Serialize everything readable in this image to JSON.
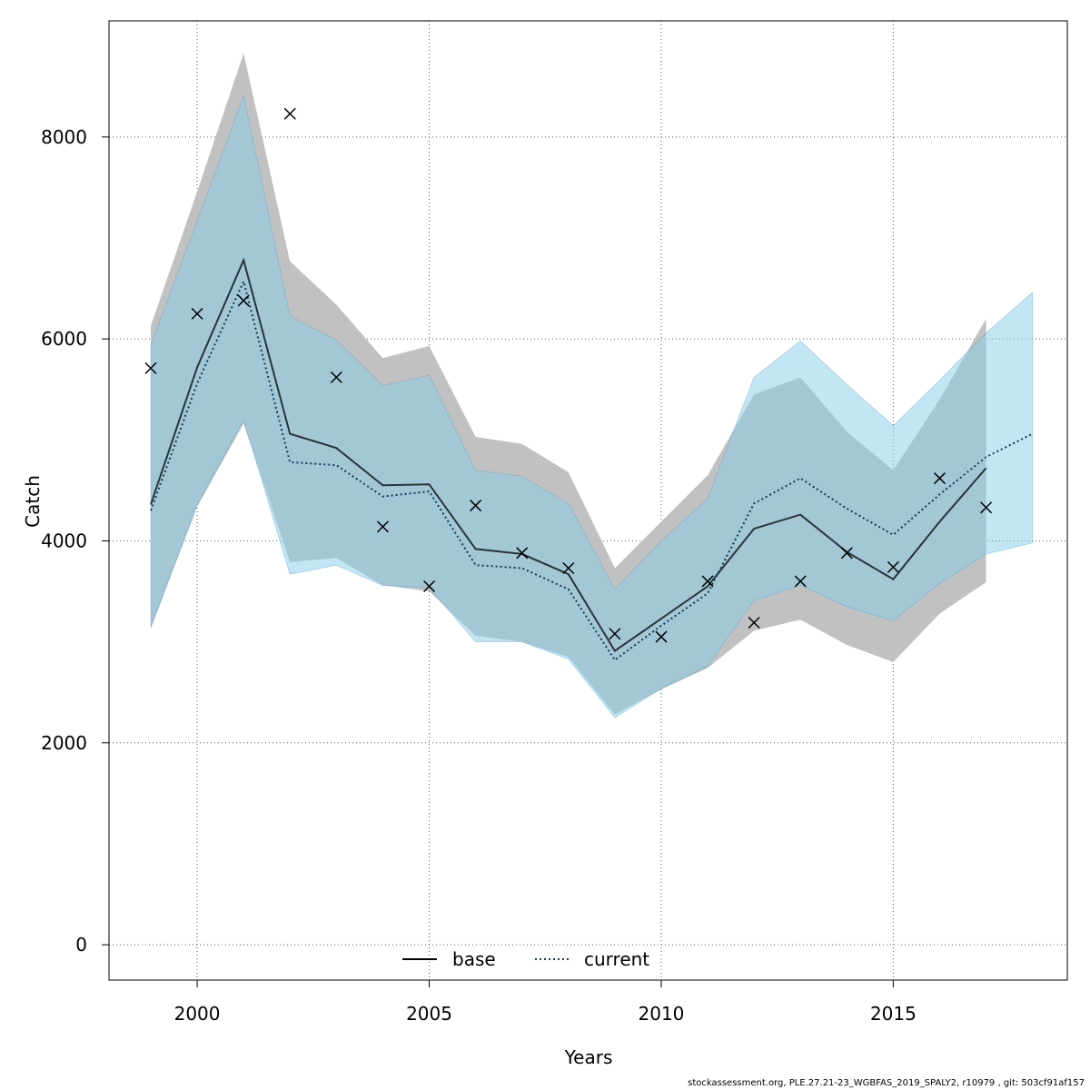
{
  "chart_data": {
    "type": "line",
    "xlabel": "Years",
    "ylabel": "Catch",
    "xlim": [
      1998.1,
      2018.75
    ],
    "ylim": [
      -350,
      9150
    ],
    "x_ticks": [
      2000,
      2005,
      2010,
      2015
    ],
    "y_ticks": [
      0,
      2000,
      4000,
      6000,
      8000
    ],
    "grid": true,
    "legend_position": "bottom-center",
    "series": [
      {
        "name": "base",
        "line_style": "solid",
        "color": "#000000",
        "band_color": "#bebebe",
        "x": [
          1999,
          2000,
          2001,
          2002,
          2003,
          2004,
          2005,
          2006,
          2007,
          2008,
          2009,
          2010,
          2011,
          2012,
          2013,
          2014,
          2015,
          2016,
          2017
        ],
        "values": [
          4360,
          5720,
          6780,
          5060,
          4920,
          4550,
          4560,
          3920,
          3870,
          3670,
          2910,
          3230,
          3550,
          4120,
          4260,
          3890,
          3620,
          4190,
          4720
        ],
        "upper": [
          6130,
          7460,
          8830,
          6770,
          6340,
          5810,
          5930,
          5030,
          4960,
          4680,
          3730,
          4190,
          4650,
          5450,
          5620,
          5080,
          4700,
          5400,
          6200
        ],
        "lower": [
          3130,
          4340,
          5160,
          3790,
          3830,
          3560,
          3500,
          3060,
          3000,
          2850,
          2280,
          2530,
          2740,
          3110,
          3220,
          2970,
          2800,
          3280,
          3590
        ]
      },
      {
        "name": "current",
        "line_style": "dotted",
        "color": "#0b3d5c",
        "band_color": "#87ceeb",
        "x": [
          1999,
          2000,
          2001,
          2002,
          2003,
          2004,
          2005,
          2006,
          2007,
          2008,
          2009,
          2010,
          2011,
          2012,
          2013,
          2014,
          2015,
          2016,
          2017,
          2018
        ],
        "values": [
          4300,
          5560,
          6570,
          4780,
          4750,
          4440,
          4490,
          3760,
          3730,
          3520,
          2820,
          3160,
          3480,
          4370,
          4620,
          4320,
          4060,
          4460,
          4830,
          5060
        ],
        "upper": [
          5940,
          7170,
          8410,
          6230,
          5990,
          5540,
          5640,
          4700,
          4640,
          4370,
          3520,
          4000,
          4420,
          5620,
          5980,
          5550,
          5140,
          5590,
          6060,
          6460
        ],
        "lower": [
          3150,
          4360,
          5200,
          3670,
          3760,
          3560,
          3540,
          3000,
          3000,
          2830,
          2250,
          2540,
          2760,
          3410,
          3560,
          3350,
          3210,
          3580,
          3870,
          3980
        ]
      }
    ],
    "observations": {
      "marker": "x",
      "x": [
        1999,
        2000,
        2001,
        2002,
        2003,
        2004,
        2005,
        2006,
        2007,
        2008,
        2009,
        2010,
        2011,
        2012,
        2013,
        2014,
        2015,
        2016,
        2017
      ],
      "values": [
        5710,
        6250,
        6380,
        8230,
        5620,
        4140,
        3550,
        4350,
        3880,
        3730,
        3080,
        3050,
        3600,
        3190,
        3600,
        3880,
        3740,
        4620,
        4330
      ]
    }
  },
  "legend": {
    "base_label": "base",
    "current_label": "current"
  },
  "footer": "stockassessment.org, PLE.27.21-23_WGBFAS_2019_SPALY2, r10979 , git: 503cf91af157"
}
